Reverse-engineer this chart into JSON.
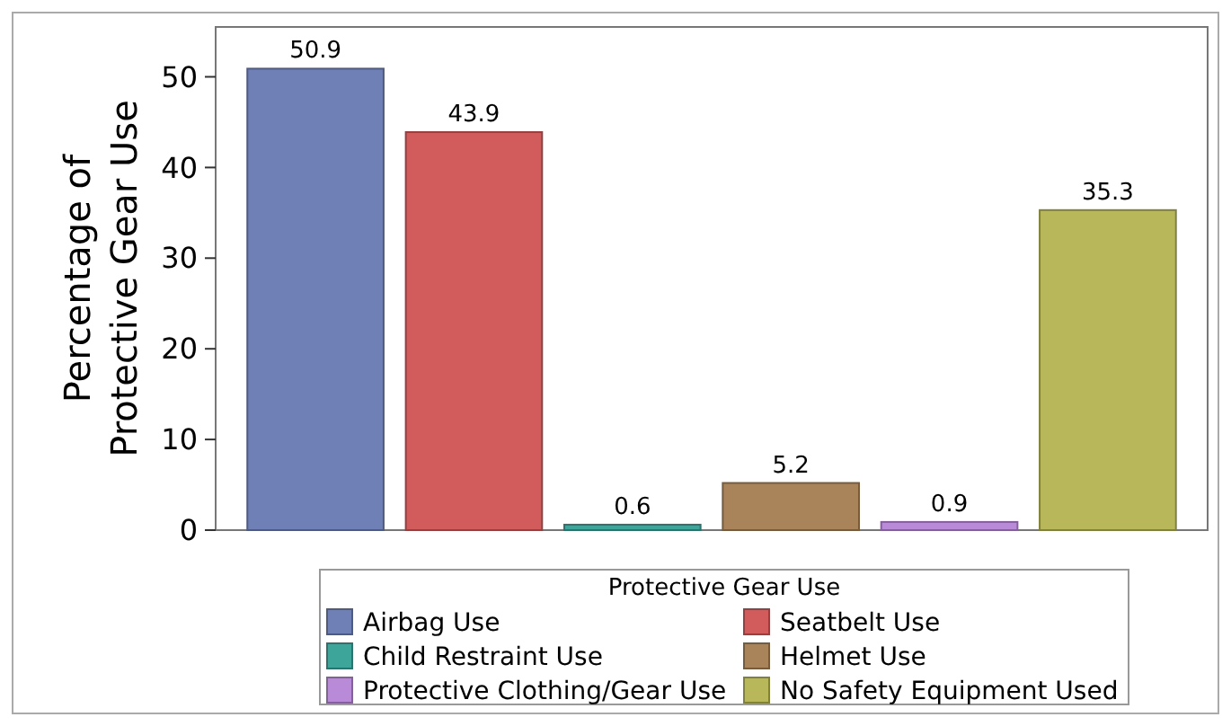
{
  "chart_data": {
    "type": "bar",
    "ylabel": "Percentage of\nProtective Gear Use",
    "legend_title": "Protective Gear Use",
    "legend": "bottom",
    "data_labels": true,
    "stacked": true,
    "categories": [
      null,
      null,
      null,
      null,
      null,
      null
    ],
    "ylim": [
      0,
      55.5
    ],
    "yticks": [
      0,
      10,
      20,
      30,
      40,
      50
    ],
    "series": [
      {
        "name": "Airbag Use",
        "color": "#6f80b6",
        "values": [
          50.9,
          null,
          null,
          null,
          null,
          null
        ]
      },
      {
        "name": "Seatbelt Use",
        "color": "#d25b5b",
        "values": [
          null,
          43.9,
          null,
          null,
          null,
          null
        ]
      },
      {
        "name": "Child Restraint Use",
        "color": "#3ea59b",
        "values": [
          null,
          null,
          0.6,
          null,
          null,
          null
        ]
      },
      {
        "name": "Helmet Use",
        "color": "#a9835a",
        "values": [
          null,
          null,
          null,
          5.2,
          null,
          null
        ]
      },
      {
        "name": "Protective Clothing/Gear Use",
        "color": "#b98ad8",
        "values": [
          null,
          null,
          null,
          null,
          0.9,
          null
        ]
      },
      {
        "name": "No Safety Equipment Used",
        "color": "#b8b85a",
        "values": [
          null,
          null,
          null,
          null,
          null,
          35.3
        ]
      }
    ]
  }
}
